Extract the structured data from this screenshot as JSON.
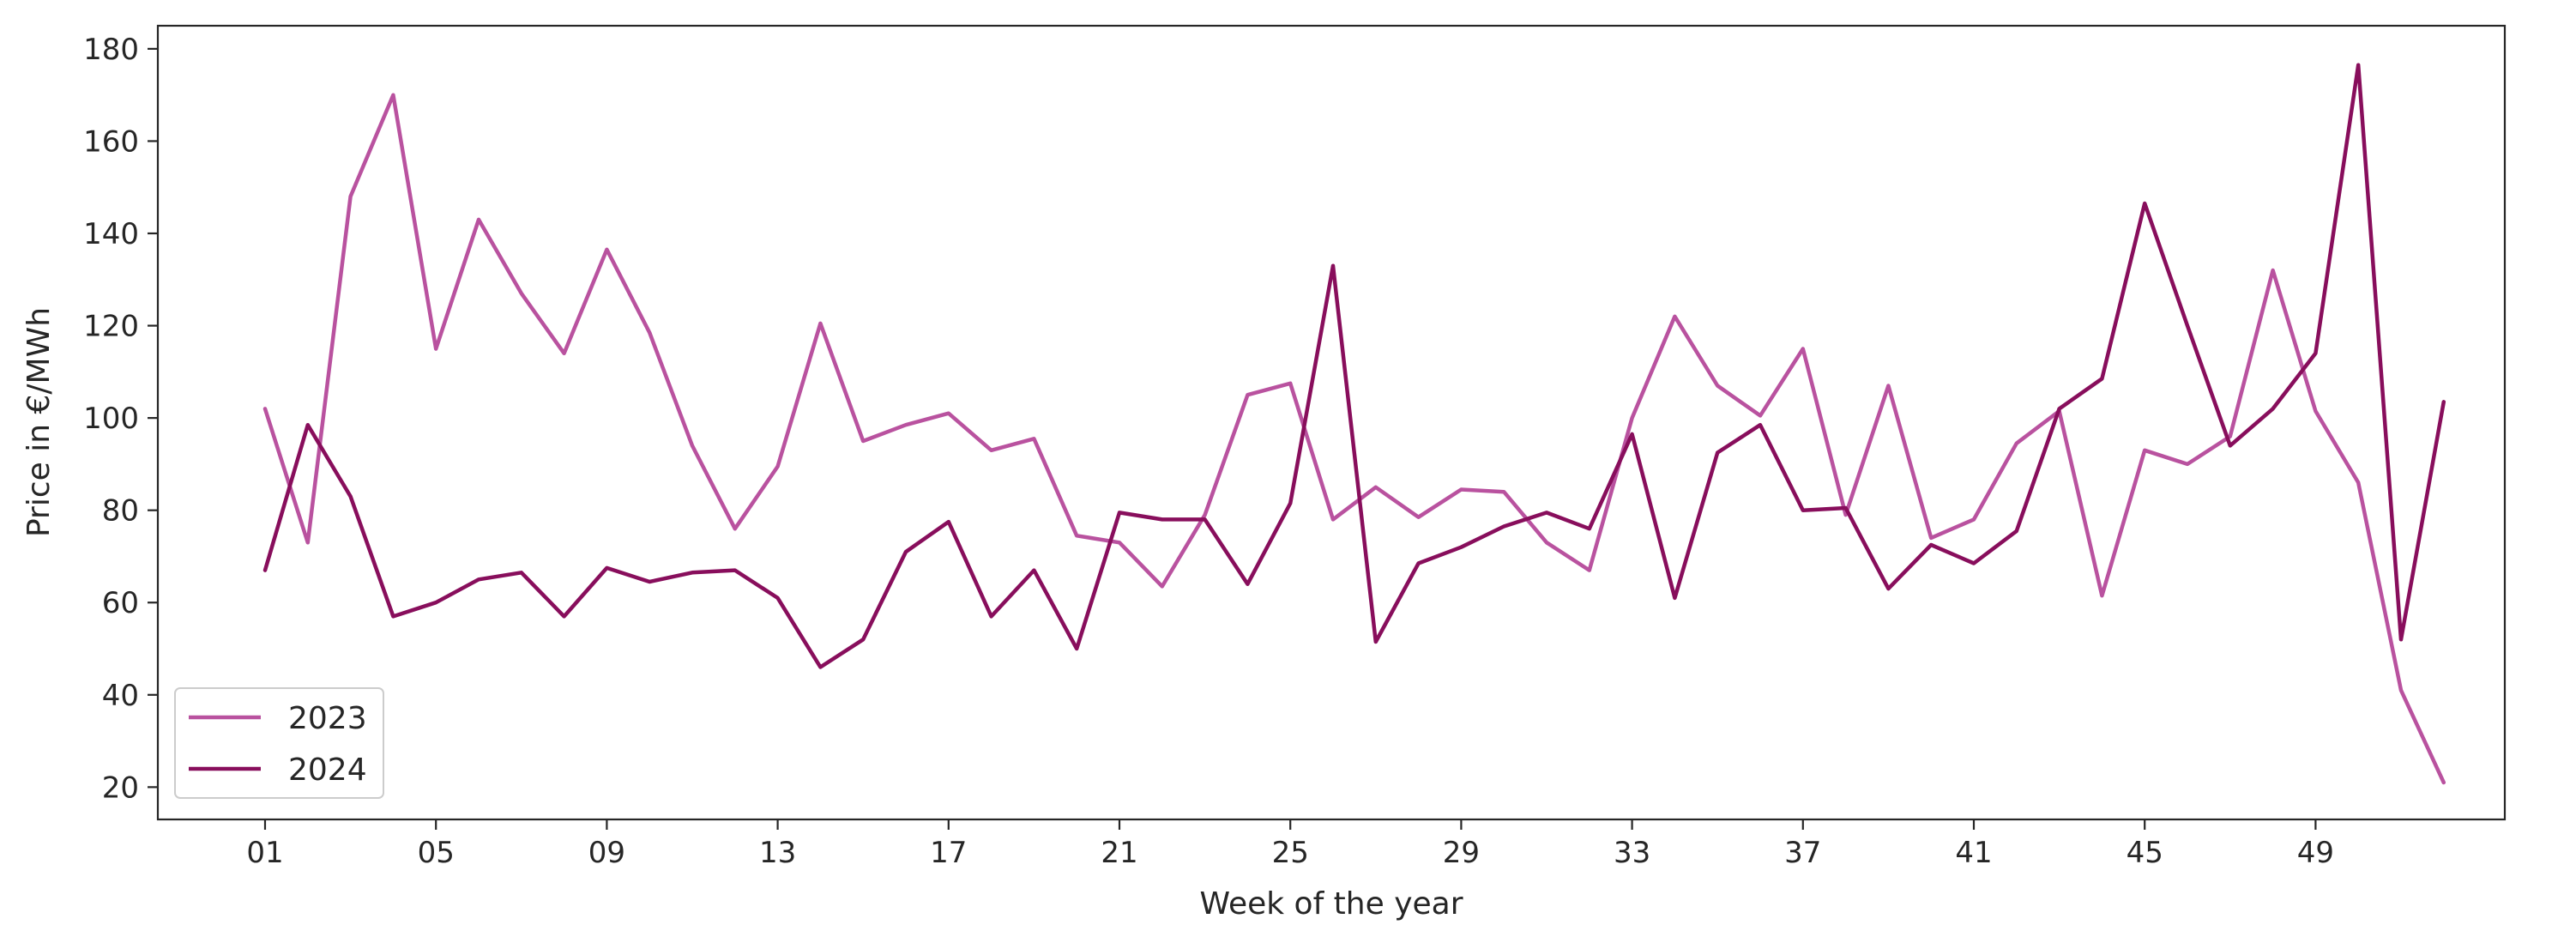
{
  "chart_data": {
    "type": "line",
    "title": "",
    "xlabel": "Week of the year",
    "ylabel": "Price in €/MWh",
    "x": [
      "01",
      "02",
      "03",
      "04",
      "05",
      "06",
      "07",
      "08",
      "09",
      "10",
      "11",
      "12",
      "13",
      "14",
      "15",
      "16",
      "17",
      "18",
      "19",
      "20",
      "21",
      "22",
      "23",
      "24",
      "25",
      "26",
      "27",
      "28",
      "29",
      "30",
      "31",
      "32",
      "33",
      "34",
      "35",
      "36",
      "37",
      "38",
      "39",
      "40",
      "41",
      "42",
      "43",
      "44",
      "45",
      "46",
      "47",
      "48",
      "49",
      "50",
      "51",
      "52"
    ],
    "x_tick_labels": [
      "01",
      "05",
      "09",
      "13",
      "17",
      "21",
      "25",
      "29",
      "33",
      "37",
      "41",
      "45",
      "49"
    ],
    "y_ticks": [
      20,
      40,
      60,
      80,
      100,
      120,
      140,
      160,
      180
    ],
    "ylim": [
      13,
      185
    ],
    "grid": false,
    "legend_position": "lower-left",
    "series": [
      {
        "name": "2023",
        "color": "#b9529f",
        "values": [
          102,
          73,
          148,
          170,
          115,
          143,
          127,
          114,
          136.5,
          118.5,
          94,
          76,
          89.5,
          120.5,
          95,
          98.5,
          101,
          93,
          95.5,
          74.5,
          73,
          63.5,
          79,
          105,
          107.5,
          78,
          85,
          78.5,
          84.5,
          84,
          73,
          67,
          100,
          122,
          107,
          100.5,
          115,
          79,
          107,
          74,
          78,
          94.5,
          101.5,
          61.5,
          93,
          90,
          96,
          132,
          101.5,
          86,
          41,
          21
        ]
      },
      {
        "name": "2024",
        "color": "#880e5c",
        "values": [
          67,
          98.5,
          83,
          57,
          60,
          65,
          66.5,
          57,
          67.5,
          64.5,
          66.5,
          67,
          61,
          46,
          52,
          71,
          77.5,
          57,
          67,
          50,
          79.5,
          78,
          78,
          64,
          81.5,
          133,
          51.5,
          68.5,
          72,
          76.5,
          79.5,
          76,
          96.5,
          61,
          92.5,
          98.5,
          80,
          80.5,
          63,
          72.5,
          68.5,
          75.5,
          102,
          108.5,
          146.5,
          120,
          94,
          102,
          114,
          176.5,
          52,
          103.5
        ]
      }
    ]
  }
}
